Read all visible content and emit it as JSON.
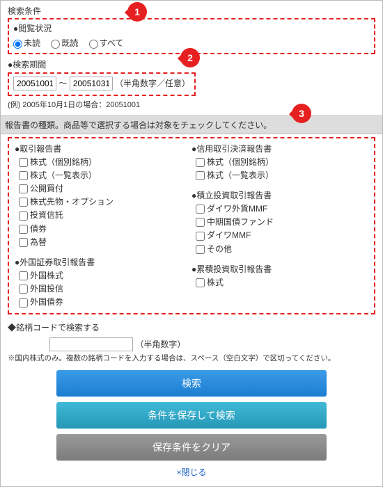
{
  "callouts": {
    "c1": "1",
    "c2": "2",
    "c3": "3"
  },
  "search_conditions": {
    "title": "検索条件",
    "status_label": "●閲覧状況",
    "radios": {
      "unread": "未読",
      "read": "既読",
      "all": "すべて"
    }
  },
  "period": {
    "title": "●検索期間",
    "from": "20051001",
    "to": "20051031",
    "hint": "（半角数字／任意）",
    "example": "(例) 2005年10月1日の場合：20051001"
  },
  "greybar": "報告書の種類。商品等で選択する場合は対象をチェックしてください。",
  "left": {
    "g1": {
      "title": "●取引報告書",
      "items": [
        "株式（個別銘柄）",
        "株式（一覧表示）",
        "公開買付",
        "株式先物・オプション",
        "投資信託",
        "債券",
        "為替"
      ]
    },
    "g2": {
      "title": "●外国証券取引報告書",
      "items": [
        "外国株式",
        "外国投信",
        "外国債券"
      ]
    }
  },
  "right": {
    "g1": {
      "title": "●信用取引決済報告書",
      "items": [
        "株式（個別銘柄）",
        "株式（一覧表示）"
      ]
    },
    "g2": {
      "title": "●積立投資取引報告書",
      "items": [
        "ダイワ外貨MMF",
        "中期国債ファンド",
        "ダイワMMF",
        "その他"
      ]
    },
    "g3": {
      "title": "●累積投資取引報告書",
      "items": [
        "株式"
      ]
    }
  },
  "code_search": {
    "title": "◆銘柄コードで検索する",
    "suffix": "（半角数字）",
    "note": "※国内株式のみ。複数の銘柄コードを入力する場合は、スペース（空白文字）で区切ってください。"
  },
  "buttons": {
    "search": "検索",
    "save_search": "条件を保存して検索",
    "clear": "保存条件をクリア"
  },
  "close": "×閉じる"
}
